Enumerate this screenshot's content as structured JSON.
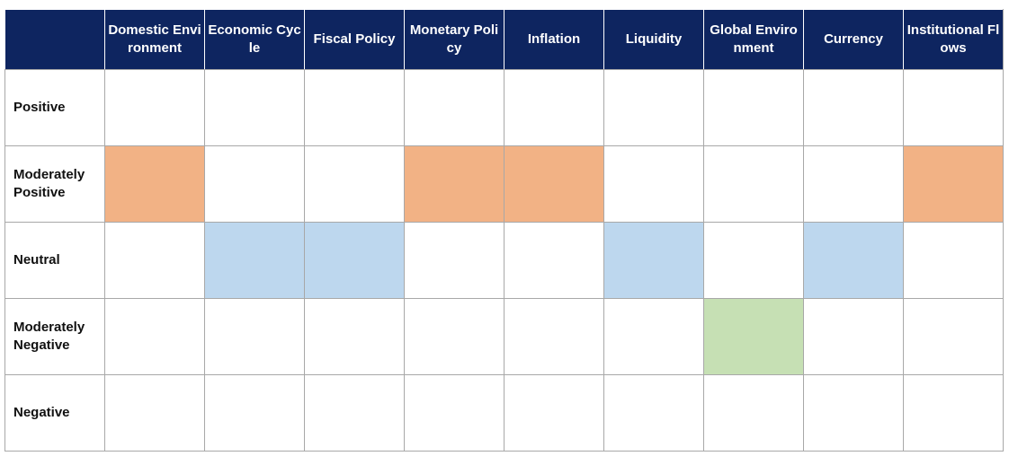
{
  "chart_data": {
    "type": "heatmap",
    "columns": [
      "Domestic Environment",
      "Economic Cycle",
      "Fiscal Policy",
      "Monetary Policy",
      "Inflation",
      "Liquidity",
      "Global Environment",
      "Currency",
      "Institutional Flows"
    ],
    "rows": [
      "Positive",
      "Moderately Positive",
      "Neutral",
      "Moderately Negative",
      "Negative"
    ],
    "assessment": {
      "Domestic Environment": "Moderately Positive",
      "Economic Cycle": "Neutral",
      "Fiscal Policy": "Neutral",
      "Monetary Policy": "Moderately Positive",
      "Inflation": "Moderately Positive",
      "Liquidity": "Neutral",
      "Global Environment": "Moderately Negative",
      "Currency": "Neutral",
      "Institutional Flows": "Moderately Positive"
    },
    "colors": {
      "Moderately Positive": "#f2b285",
      "Neutral": "#bdd7ee",
      "Moderately Negative": "#c6e0b4",
      "header": "#0e2560"
    }
  }
}
